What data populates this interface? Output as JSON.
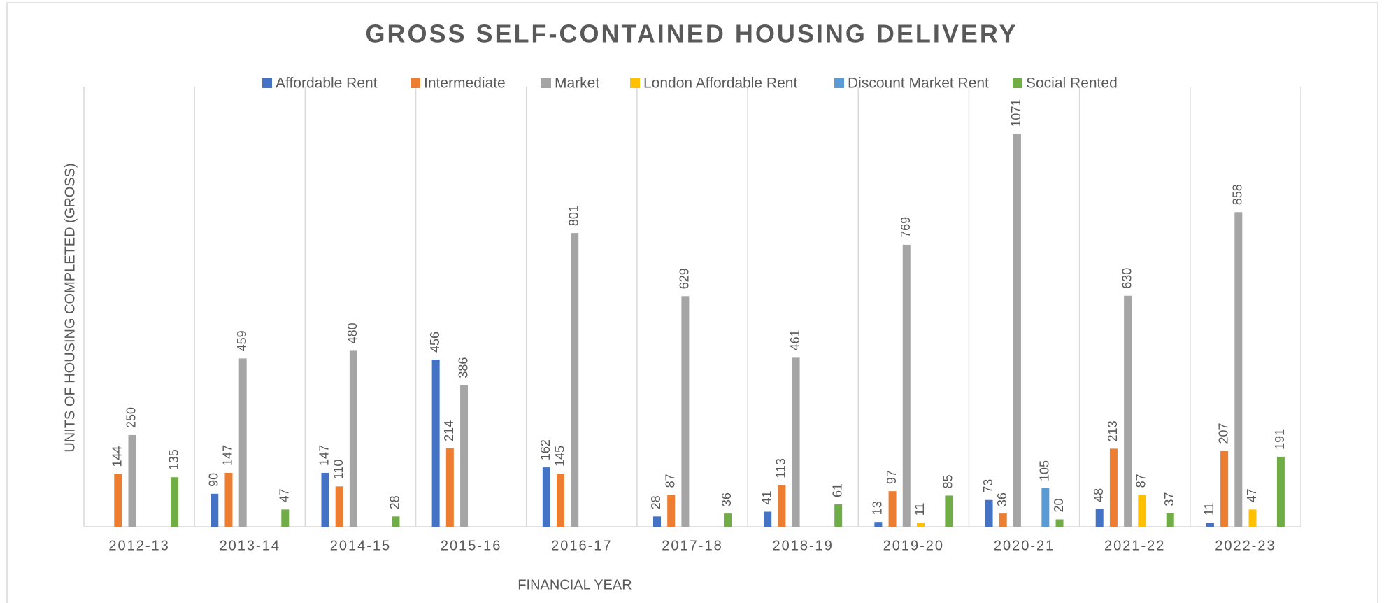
{
  "chart_data": {
    "type": "bar",
    "title": "GROSS SELF-CONTAINED HOUSING DELIVERY",
    "x_label": "FINANCIAL YEAR",
    "y_label": "UNITS OF HOUSING COMPLETED (GROSS)",
    "categories": [
      "2012-13",
      "2013-14",
      "2014-15",
      "2015-16",
      "2016-17",
      "2017-18",
      "2018-19",
      "2019-20",
      "2020-21",
      "2021-22",
      "2022-23"
    ],
    "series": [
      {
        "name": "Affordable Rent",
        "color": "#4472c4",
        "values": [
          null,
          90,
          147,
          456,
          162,
          28,
          41,
          13,
          73,
          48,
          11
        ]
      },
      {
        "name": "Intermediate",
        "color": "#ed7d31",
        "values": [
          144,
          147,
          110,
          214,
          145,
          87,
          113,
          97,
          36,
          213,
          207
        ]
      },
      {
        "name": "Market",
        "color": "#a5a5a5",
        "values": [
          250,
          459,
          480,
          386,
          801,
          629,
          461,
          769,
          1071,
          630,
          858
        ]
      },
      {
        "name": "London Affordable Rent",
        "color": "#ffc000",
        "values": [
          null,
          null,
          null,
          null,
          null,
          null,
          null,
          11,
          null,
          87,
          47
        ]
      },
      {
        "name": "Discount Market Rent",
        "color": "#5b9bd5",
        "values": [
          null,
          null,
          null,
          null,
          null,
          null,
          null,
          null,
          105,
          null,
          null
        ]
      },
      {
        "name": "Social Rented",
        "color": "#70ad47",
        "values": [
          135,
          47,
          28,
          null,
          null,
          36,
          61,
          85,
          20,
          37,
          191
        ]
      }
    ],
    "ylim": [
      0,
      1200
    ],
    "legend": "top"
  }
}
